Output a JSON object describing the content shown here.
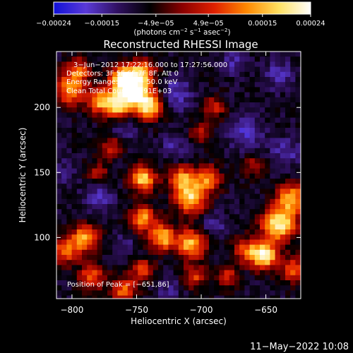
{
  "chart_data": {
    "type": "heatmap",
    "title": "Reconstructed RHESSI Image",
    "xlabel": "Heliocentric X (arcsec)",
    "ylabel": "Heliocentric Y (arcsec)",
    "xlim": [
      -812,
      -623
    ],
    "ylim": [
      53,
      243
    ],
    "x_ticks": [
      -800,
      -750,
      -700,
      -650
    ],
    "x_tick_labels": [
      "−800",
      "−750",
      "−700",
      "−650"
    ],
    "y_ticks": [
      100,
      150,
      200
    ],
    "y_tick_labels": [
      "100",
      "150",
      "200"
    ],
    "colorbar": {
      "range": [
        -0.00024,
        0.00024
      ],
      "ticks": [
        -0.00024,
        -0.00015,
        -4.9e-05,
        4.9e-05,
        0.00015,
        0.00024
      ],
      "tick_labels": [
        "−0.00024",
        "−0.00015",
        "−4.9e−05",
        "4.9e−05",
        "0.00015",
        "0.00024"
      ],
      "label_main": "(photons cm",
      "label_exp1": "−2",
      "label_mid": " s",
      "label_exp2": "−1",
      "label_tail": " asec",
      "label_exp3": "−2",
      "label_close": ")",
      "colors": [
        "#1010d8",
        "#5a3ad8",
        "#301060",
        "#000000",
        "#8a0000",
        "#e02000",
        "#ff8800",
        "#ffe060",
        "#ffffff"
      ]
    },
    "annotations": [
      "3−Jun−2012 17:22:16.000 to 17:27:56.000",
      "Detectors: 3F 5F 6F 7F 8F, Att 0",
      "Energy Range: 25.0 − 50.0 keV",
      "Clean    Total Counts: 4.91E+03"
    ],
    "peak_label": "Position of Peak = [−651,86]",
    "grid": false,
    "hotspots": [
      {
        "x": -752,
        "y": 213,
        "v": 1.0,
        "s": 10
      },
      {
        "x": -760,
        "y": 222,
        "v": 0.85,
        "s": 7
      },
      {
        "x": -740,
        "y": 200,
        "v": 0.8,
        "s": 7
      },
      {
        "x": -765,
        "y": 200,
        "v": 0.65,
        "s": 7
      },
      {
        "x": -778,
        "y": 205,
        "v": 0.7,
        "s": 7
      },
      {
        "x": -802,
        "y": 213,
        "v": 0.7,
        "s": 8
      },
      {
        "x": -795,
        "y": 228,
        "v": 0.55,
        "s": 7
      },
      {
        "x": -745,
        "y": 228,
        "v": 0.6,
        "s": 6
      },
      {
        "x": -745,
        "y": 145,
        "v": 0.85,
        "s": 7
      },
      {
        "x": -715,
        "y": 145,
        "v": 0.7,
        "s": 7
      },
      {
        "x": -695,
        "y": 145,
        "v": 0.65,
        "s": 7
      },
      {
        "x": -708,
        "y": 130,
        "v": 0.85,
        "s": 8
      },
      {
        "x": -745,
        "y": 115,
        "v": 0.7,
        "s": 7
      },
      {
        "x": -730,
        "y": 100,
        "v": 0.8,
        "s": 7
      },
      {
        "x": -708,
        "y": 95,
        "v": 0.8,
        "s": 8
      },
      {
        "x": -790,
        "y": 100,
        "v": 0.75,
        "s": 7
      },
      {
        "x": -805,
        "y": 90,
        "v": 0.65,
        "s": 7
      },
      {
        "x": -785,
        "y": 70,
        "v": 0.55,
        "s": 7
      },
      {
        "x": -760,
        "y": 60,
        "v": 0.6,
        "s": 7
      },
      {
        "x": -745,
        "y": 75,
        "v": 0.5,
        "s": 6
      },
      {
        "x": -640,
        "y": 110,
        "v": 1.0,
        "s": 9
      },
      {
        "x": -651,
        "y": 86,
        "v": 1.0,
        "s": 7
      },
      {
        "x": -630,
        "y": 130,
        "v": 0.8,
        "s": 8
      },
      {
        "x": -628,
        "y": 75,
        "v": 0.6,
        "s": 7
      },
      {
        "x": -665,
        "y": 90,
        "v": 0.55,
        "s": 7
      },
      {
        "x": -680,
        "y": 70,
        "v": 0.45,
        "s": 6
      },
      {
        "x": -705,
        "y": 70,
        "v": 0.5,
        "s": 6
      },
      {
        "x": -690,
        "y": 200,
        "v": 0.45,
        "s": 6
      },
      {
        "x": -700,
        "y": 180,
        "v": 0.4,
        "s": 6
      },
      {
        "x": -660,
        "y": 155,
        "v": 0.35,
        "s": 6
      },
      {
        "x": -780,
        "y": 150,
        "v": 0.35,
        "s": 6
      },
      {
        "x": -770,
        "y": 170,
        "v": 0.4,
        "s": 6
      }
    ],
    "coldspots": [
      {
        "x": -720,
        "y": 210,
        "v": 0.8,
        "s": 9
      },
      {
        "x": -665,
        "y": 180,
        "v": 0.85,
        "s": 9
      },
      {
        "x": -640,
        "y": 225,
        "v": 0.7,
        "s": 8
      },
      {
        "x": -690,
        "y": 110,
        "v": 0.6,
        "s": 7
      },
      {
        "x": -780,
        "y": 130,
        "v": 0.7,
        "s": 8
      },
      {
        "x": -760,
        "y": 185,
        "v": 0.6,
        "s": 7
      },
      {
        "x": -720,
        "y": 170,
        "v": 0.6,
        "s": 7
      },
      {
        "x": -635,
        "y": 165,
        "v": 0.7,
        "s": 8
      },
      {
        "x": -810,
        "y": 150,
        "v": 0.5,
        "s": 8
      },
      {
        "x": -675,
        "y": 235,
        "v": 0.6,
        "s": 7
      },
      {
        "x": -760,
        "y": 95,
        "v": 0.45,
        "s": 6
      },
      {
        "x": -725,
        "y": 60,
        "v": 0.5,
        "s": 7
      }
    ]
  },
  "footer": {
    "date": "11−May−2022 10:08"
  }
}
